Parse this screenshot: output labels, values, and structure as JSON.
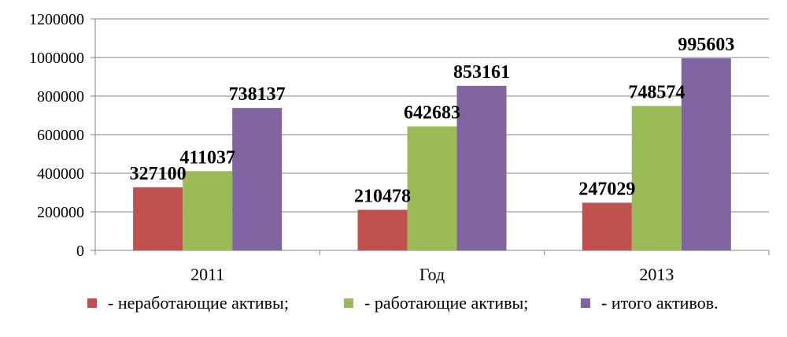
{
  "chart_data": {
    "type": "bar",
    "categories": [
      "2011",
      "Год",
      "2013"
    ],
    "series": [
      {
        "name": "- неработающие активы;",
        "color": "#c0504d",
        "values": [
          327100,
          210478,
          247029
        ]
      },
      {
        "name": "- работающие активы;",
        "color": "#9bbb59",
        "values": [
          411037,
          642683,
          748574
        ]
      },
      {
        "name": "- итого активов.",
        "color": "#8064a2",
        "values": [
          738137,
          853161,
          995603
        ]
      }
    ],
    "yticks": [
      "0",
      "200000",
      "400000",
      "600000",
      "800000",
      "1000000",
      "1200000"
    ],
    "ylim": [
      0,
      1200000
    ],
    "grid": true,
    "legend": "bottom"
  }
}
